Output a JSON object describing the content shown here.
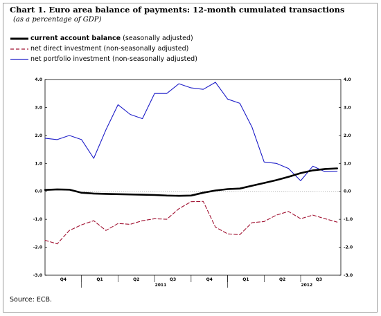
{
  "title": "Chart 1. Euro area balance of payments: 12-month cumulated transactions",
  "subtitle": "(as a percentage of GDP)",
  "source": "Source: ECB.",
  "colors": {
    "current": "#000000",
    "direct": "#a01030",
    "portfolio": "#1c1cc8",
    "zero": "#888888"
  },
  "legend": [
    {
      "name": "current account balance",
      "qualifier": "(seasonally adjusted)",
      "style": "solid-bold",
      "color": "#000000"
    },
    {
      "name": "net direct investment",
      "qualifier": "(non-seasonally adjusted)",
      "style": "dashed",
      "color": "#a01030"
    },
    {
      "name": "net portfolio investment",
      "qualifier": "(non-seasonally adjusted)",
      "style": "solid",
      "color": "#1c1cc8"
    }
  ],
  "chart_data": {
    "type": "line",
    "ylim": [
      -3.0,
      4.0
    ],
    "yticks": [
      "4.0",
      "3.0",
      "2.0",
      "1.0",
      "0.0",
      "-1.0",
      "-2.0",
      "-3.0"
    ],
    "xlim": [
      0,
      24.3
    ],
    "quarter_labels": [
      {
        "label": "Q4",
        "x": 1.5
      },
      {
        "label": "Q1",
        "x": 4.5
      },
      {
        "label": "Q2",
        "x": 7.5
      },
      {
        "label": "Q3",
        "x": 10.5
      },
      {
        "label": "Q4",
        "x": 13.5
      },
      {
        "label": "Q1",
        "x": 16.5
      },
      {
        "label": "Q2",
        "x": 19.5
      },
      {
        "label": "Q3",
        "x": 22.5
      }
    ],
    "year_labels": [
      {
        "label": "2011",
        "x": 9.5
      },
      {
        "label": "2012",
        "x": 21.5
      }
    ],
    "quarter_separators": [
      3,
      6,
      9,
      12,
      15,
      18,
      21
    ],
    "year_separators": [
      3,
      15
    ],
    "reference_line": 0,
    "series": [
      {
        "name": "current account balance",
        "x": [
          0,
          1,
          2,
          3,
          4,
          5,
          6,
          7,
          8,
          9,
          10,
          11,
          12,
          13,
          14,
          15,
          16,
          17,
          18,
          19,
          20,
          21,
          22,
          23,
          24
        ],
        "values": [
          0.05,
          0.07,
          0.06,
          -0.05,
          -0.08,
          -0.09,
          -0.1,
          -0.11,
          -0.12,
          -0.13,
          -0.15,
          -0.16,
          -0.15,
          -0.05,
          0.03,
          0.08,
          0.1,
          0.2,
          0.3,
          0.4,
          0.52,
          0.65,
          0.75,
          0.8,
          0.82
        ]
      },
      {
        "name": "net direct investment",
        "x": [
          0,
          1,
          2,
          3,
          4,
          5,
          6,
          7,
          8,
          9,
          10,
          11,
          12,
          13,
          14,
          15,
          16,
          17,
          18,
          19,
          20,
          21,
          22,
          23,
          24
        ],
        "values": [
          -1.75,
          -1.88,
          -1.4,
          -1.2,
          -1.05,
          -1.4,
          -1.15,
          -1.18,
          -1.05,
          -0.98,
          -1.0,
          -0.62,
          -0.37,
          -0.36,
          -1.28,
          -1.52,
          -1.55,
          -1.12,
          -1.08,
          -0.85,
          -0.72,
          -0.98,
          -0.85,
          -0.98,
          -1.1
        ]
      },
      {
        "name": "net portfolio investment",
        "x": [
          0,
          1,
          2,
          3,
          4,
          5,
          6,
          7,
          8,
          9,
          10,
          11,
          12,
          13,
          14,
          15,
          16,
          17,
          18,
          19,
          20,
          21,
          22,
          23,
          24
        ],
        "values": [
          1.9,
          1.85,
          2.0,
          1.85,
          1.18,
          2.2,
          3.1,
          2.75,
          2.6,
          3.5,
          3.5,
          3.85,
          3.7,
          3.65,
          3.9,
          3.3,
          3.15,
          2.3,
          1.05,
          1.0,
          0.82,
          0.38,
          0.9,
          0.7,
          0.72
        ]
      }
    ]
  }
}
